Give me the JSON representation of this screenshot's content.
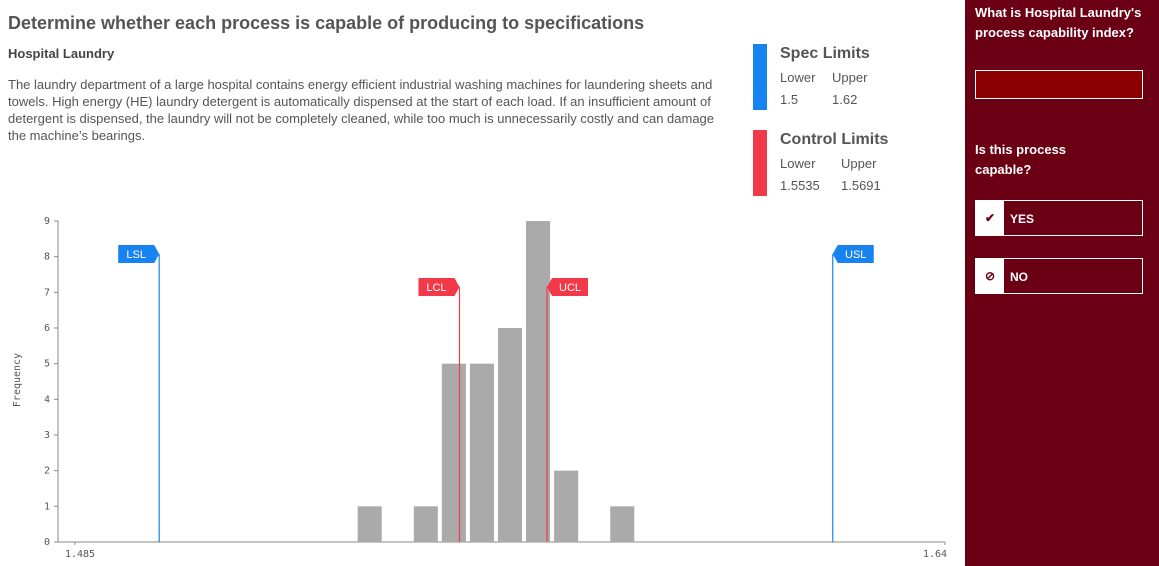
{
  "header": {
    "title": "Determine whether each process is capable of producing to specifications",
    "subtitle": "Hospital Laundry",
    "description": "The laundry department of a large hospital contains energy efficient industrial washing machines for laundering sheets and towels. High energy (HE) laundry detergent is automatically dispensed at the start of each load. If an insufficient amount of detergent is dispensed, the laundry will not be completely cleaned, while too much is unnecessarily costly and can damage the machine’s bearings."
  },
  "legend": {
    "spec_title": "Spec Limits",
    "control_title": "Control Limits",
    "lower": "Lower",
    "upper": "Upper"
  },
  "chart_data": {
    "type": "histogram",
    "ylabel": "Frequency",
    "color": "#aaaaaa",
    "bins": [
      1.535,
      1.54,
      1.545,
      1.55,
      1.555,
      1.56,
      1.565,
      1.57,
      1.575,
      1.58,
      1.585
    ],
    "counts": [
      1,
      0,
      1,
      5,
      5,
      6,
      9,
      2,
      0,
      1
    ],
    "xlim": [
      1.485,
      1.64
    ],
    "xticks": [
      1.485,
      1.64
    ],
    "ylim": [
      0,
      9
    ],
    "yticks": [
      0,
      1,
      2,
      3,
      4,
      5,
      6,
      7,
      8,
      9
    ],
    "limits": [
      {
        "label": "LSL",
        "value": 1.5,
        "color": "#1683f0"
      },
      {
        "label": "USL",
        "value": 1.62,
        "color": "#1683f0"
      },
      {
        "label": "LCL",
        "value": 1.5535,
        "color": "#f2394a"
      },
      {
        "label": "UCL",
        "value": 1.5691,
        "color": "#f2394a"
      }
    ]
  },
  "sidebar": {
    "question1": "What is Hospital Laundry's process capability index?",
    "question2": "Is this process capable?",
    "yes": "YES",
    "no": "NO"
  }
}
